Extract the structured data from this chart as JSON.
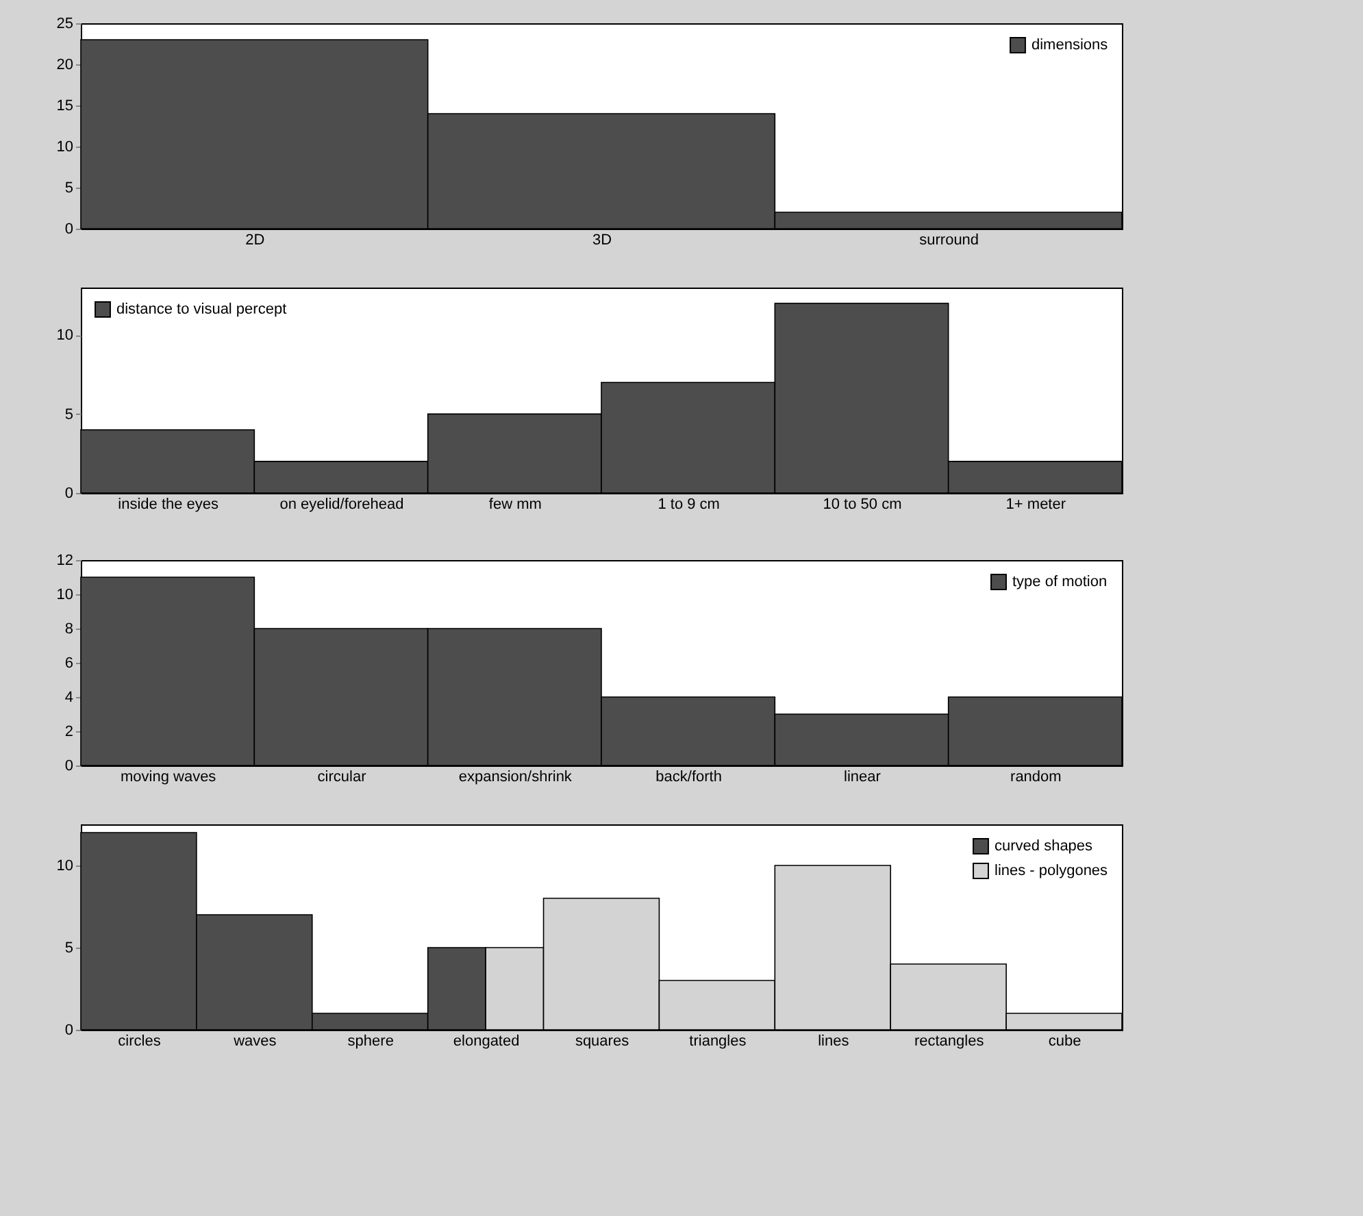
{
  "chart_data": [
    {
      "type": "bar",
      "categories": [
        "2D",
        "3D",
        "surround"
      ],
      "ylim": [
        0,
        25
      ],
      "yticks": [
        0,
        5,
        10,
        15,
        20,
        25
      ],
      "legend": "top right",
      "series": [
        {
          "name": "dimensions",
          "color": "#4d4d4d",
          "values": [
            23,
            14,
            2
          ]
        }
      ]
    },
    {
      "type": "bar",
      "categories": [
        "inside the eyes",
        "on eyelid/forehead",
        "few mm",
        "1 to 9 cm",
        "10 to 50 cm",
        "1+ meter"
      ],
      "ylim": [
        0,
        13
      ],
      "yticks": [
        0,
        5,
        10
      ],
      "legend": "top left",
      "series": [
        {
          "name": "distance to visual percept",
          "color": "#4d4d4d",
          "values": [
            4,
            2,
            5,
            7,
            12,
            2
          ]
        }
      ]
    },
    {
      "type": "bar",
      "categories": [
        "moving waves",
        "circular",
        "expansion/shrink",
        "back/forth",
        "linear",
        "random"
      ],
      "ylim": [
        0,
        12
      ],
      "yticks": [
        0,
        2,
        4,
        6,
        8,
        10,
        12
      ],
      "legend": "top right",
      "series": [
        {
          "name": "type of motion",
          "color": "#4d4d4d",
          "values": [
            11,
            8,
            8,
            4,
            3,
            4
          ]
        }
      ]
    },
    {
      "type": "bar",
      "categories": [
        "circles",
        "waves",
        "sphere",
        "elongated",
        "squares",
        "triangles",
        "lines",
        "rectangles",
        "cube"
      ],
      "ylim": [
        0,
        12.5
      ],
      "yticks": [
        0,
        5,
        10
      ],
      "legend": "top right",
      "series": [
        {
          "name": "curved shapes",
          "color": "#4d4d4d",
          "values": [
            12,
            7,
            1,
            5,
            null,
            null,
            null,
            null,
            null
          ]
        },
        {
          "name": "lines - polygones",
          "color": "#d3d3d3",
          "values": [
            null,
            null,
            null,
            5,
            8,
            3,
            10,
            4,
            1
          ]
        }
      ]
    }
  ]
}
